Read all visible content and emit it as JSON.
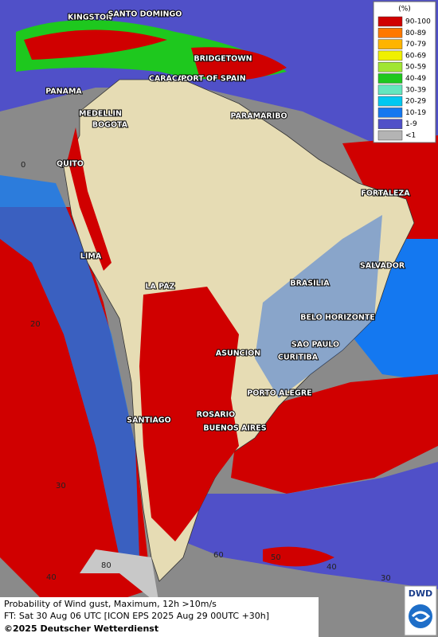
{
  "legend": {
    "title": "(%)",
    "items": [
      {
        "label": "90-100",
        "color": "#d00000"
      },
      {
        "label": "80-89",
        "color": "#ff7800"
      },
      {
        "label": "70-79",
        "color": "#ffb400"
      },
      {
        "label": "60-69",
        "color": "#f0f000"
      },
      {
        "label": "50-59",
        "color": "#a0e632"
      },
      {
        "label": "40-49",
        "color": "#1ec81e"
      },
      {
        "label": "30-39",
        "color": "#64e6be"
      },
      {
        "label": "20-29",
        "color": "#00c8f0"
      },
      {
        "label": "10-19",
        "color": "#1478f0"
      },
      {
        "label": "1-9",
        "color": "#5050c8"
      },
      {
        "label": "<1",
        "color": "#b4b4b4"
      }
    ]
  },
  "cities": [
    "KINGSTON",
    "SANTO DOMINGO",
    "BRIDGETOWN",
    "CARACAS",
    "PORT OF SPAIN",
    "PANAMA",
    "MEDELLIN",
    "BOGOTA",
    "PARAMARIBO",
    "QUITO",
    "FORTALEZA",
    "LIMA",
    "SALVADOR",
    "LA PAZ",
    "BRASILIA",
    "BELO HORIZONTE",
    "ASUNCION",
    "SAO PAULO",
    "CURITIBA",
    "PORTO ALEGRE",
    "ROSARIO",
    "SANTIAGO",
    "BUENOS AIRES"
  ],
  "grid_labels": [
    "0",
    "20",
    "30",
    "40",
    "80",
    "60",
    "50",
    "40",
    "30"
  ],
  "footer": {
    "line1": "Probability of Wind gust, Maximum, 12h >10m/s",
    "line2": "FT: Sat 30 Aug 06 UTC [ICON EPS 2025 Aug 29 00UTC +30h]",
    "line3": "©2025 Deutscher Wetterdienst"
  },
  "logo": "DWD"
}
